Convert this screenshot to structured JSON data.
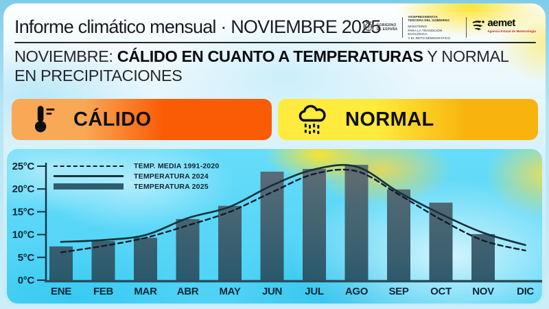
{
  "header": {
    "title": "Informe climático mensual · NOVIEMBRE 2025",
    "logos": {
      "gobierno": {
        "line1": "GOBIERNO",
        "line2": "DE ESPAÑA"
      },
      "ministry": {
        "dept_line1": "VICEPRESIDENCIA",
        "dept_line2": "TERCERA DEL GOBIERNO",
        "min_line1": "MINISTERIO",
        "min_line2": "PARA LA TRANSICIÓN ECOLÓGICA",
        "min_line3": "Y EL RETO DEMOGRÁFICO"
      },
      "aemet": {
        "name": "aemet",
        "subtitle": "Agencia Estatal de Meteorología"
      }
    }
  },
  "headline": {
    "prefix": "NOVIEMBRE:",
    "bold": "CÁLIDO EN CUANTO A TEMPERATURAS",
    "rest": "Y NORMAL",
    "line2": "EN PRECIPITACIONES"
  },
  "badges": {
    "temperature": {
      "label": "CÁLIDO",
      "icon": "thermometer-icon",
      "gradient": [
        "#f9a855",
        "#fa5c05"
      ]
    },
    "precipitation": {
      "label": "NORMAL",
      "icon": "rain-cloud-icon",
      "gradient": [
        "#ffeb3d",
        "#f8b40d"
      ]
    }
  },
  "chart_data": {
    "type": "bar",
    "categories": [
      "ENE",
      "FEB",
      "MAR",
      "ABR",
      "MAY",
      "JUN",
      "JUL",
      "AGO",
      "SEP",
      "OCT",
      "NOV",
      "DIC"
    ],
    "unit": "°C",
    "yticks": [
      0,
      5,
      10,
      15,
      20,
      25
    ],
    "ylim": [
      0,
      26.5
    ],
    "grid": false,
    "legend_position": "top-left",
    "series": [
      {
        "name": "TEMP. MEDIA 1991-2020",
        "type": "line",
        "style": "dashed",
        "color": "#0e1c26",
        "values": [
          6.1,
          7.5,
          9.3,
          12.0,
          15.0,
          19.3,
          23.3,
          23.9,
          18.8,
          13.3,
          8.7,
          6.5
        ]
      },
      {
        "name": "TEMPERATURA 2024",
        "type": "line",
        "style": "solid",
        "color": "#16323d",
        "values": [
          8.4,
          8.8,
          9.9,
          13.6,
          16.1,
          20.8,
          24.3,
          24.9,
          19.3,
          14.5,
          10.4,
          7.7
        ]
      },
      {
        "name": "TEMPERATURA 2025",
        "type": "bar",
        "color": "#3a5a68",
        "values": [
          7.4,
          8.6,
          9.3,
          13.4,
          16.3,
          23.8,
          24.4,
          25.3,
          19.9,
          17.0,
          10.1,
          null
        ]
      }
    ]
  }
}
